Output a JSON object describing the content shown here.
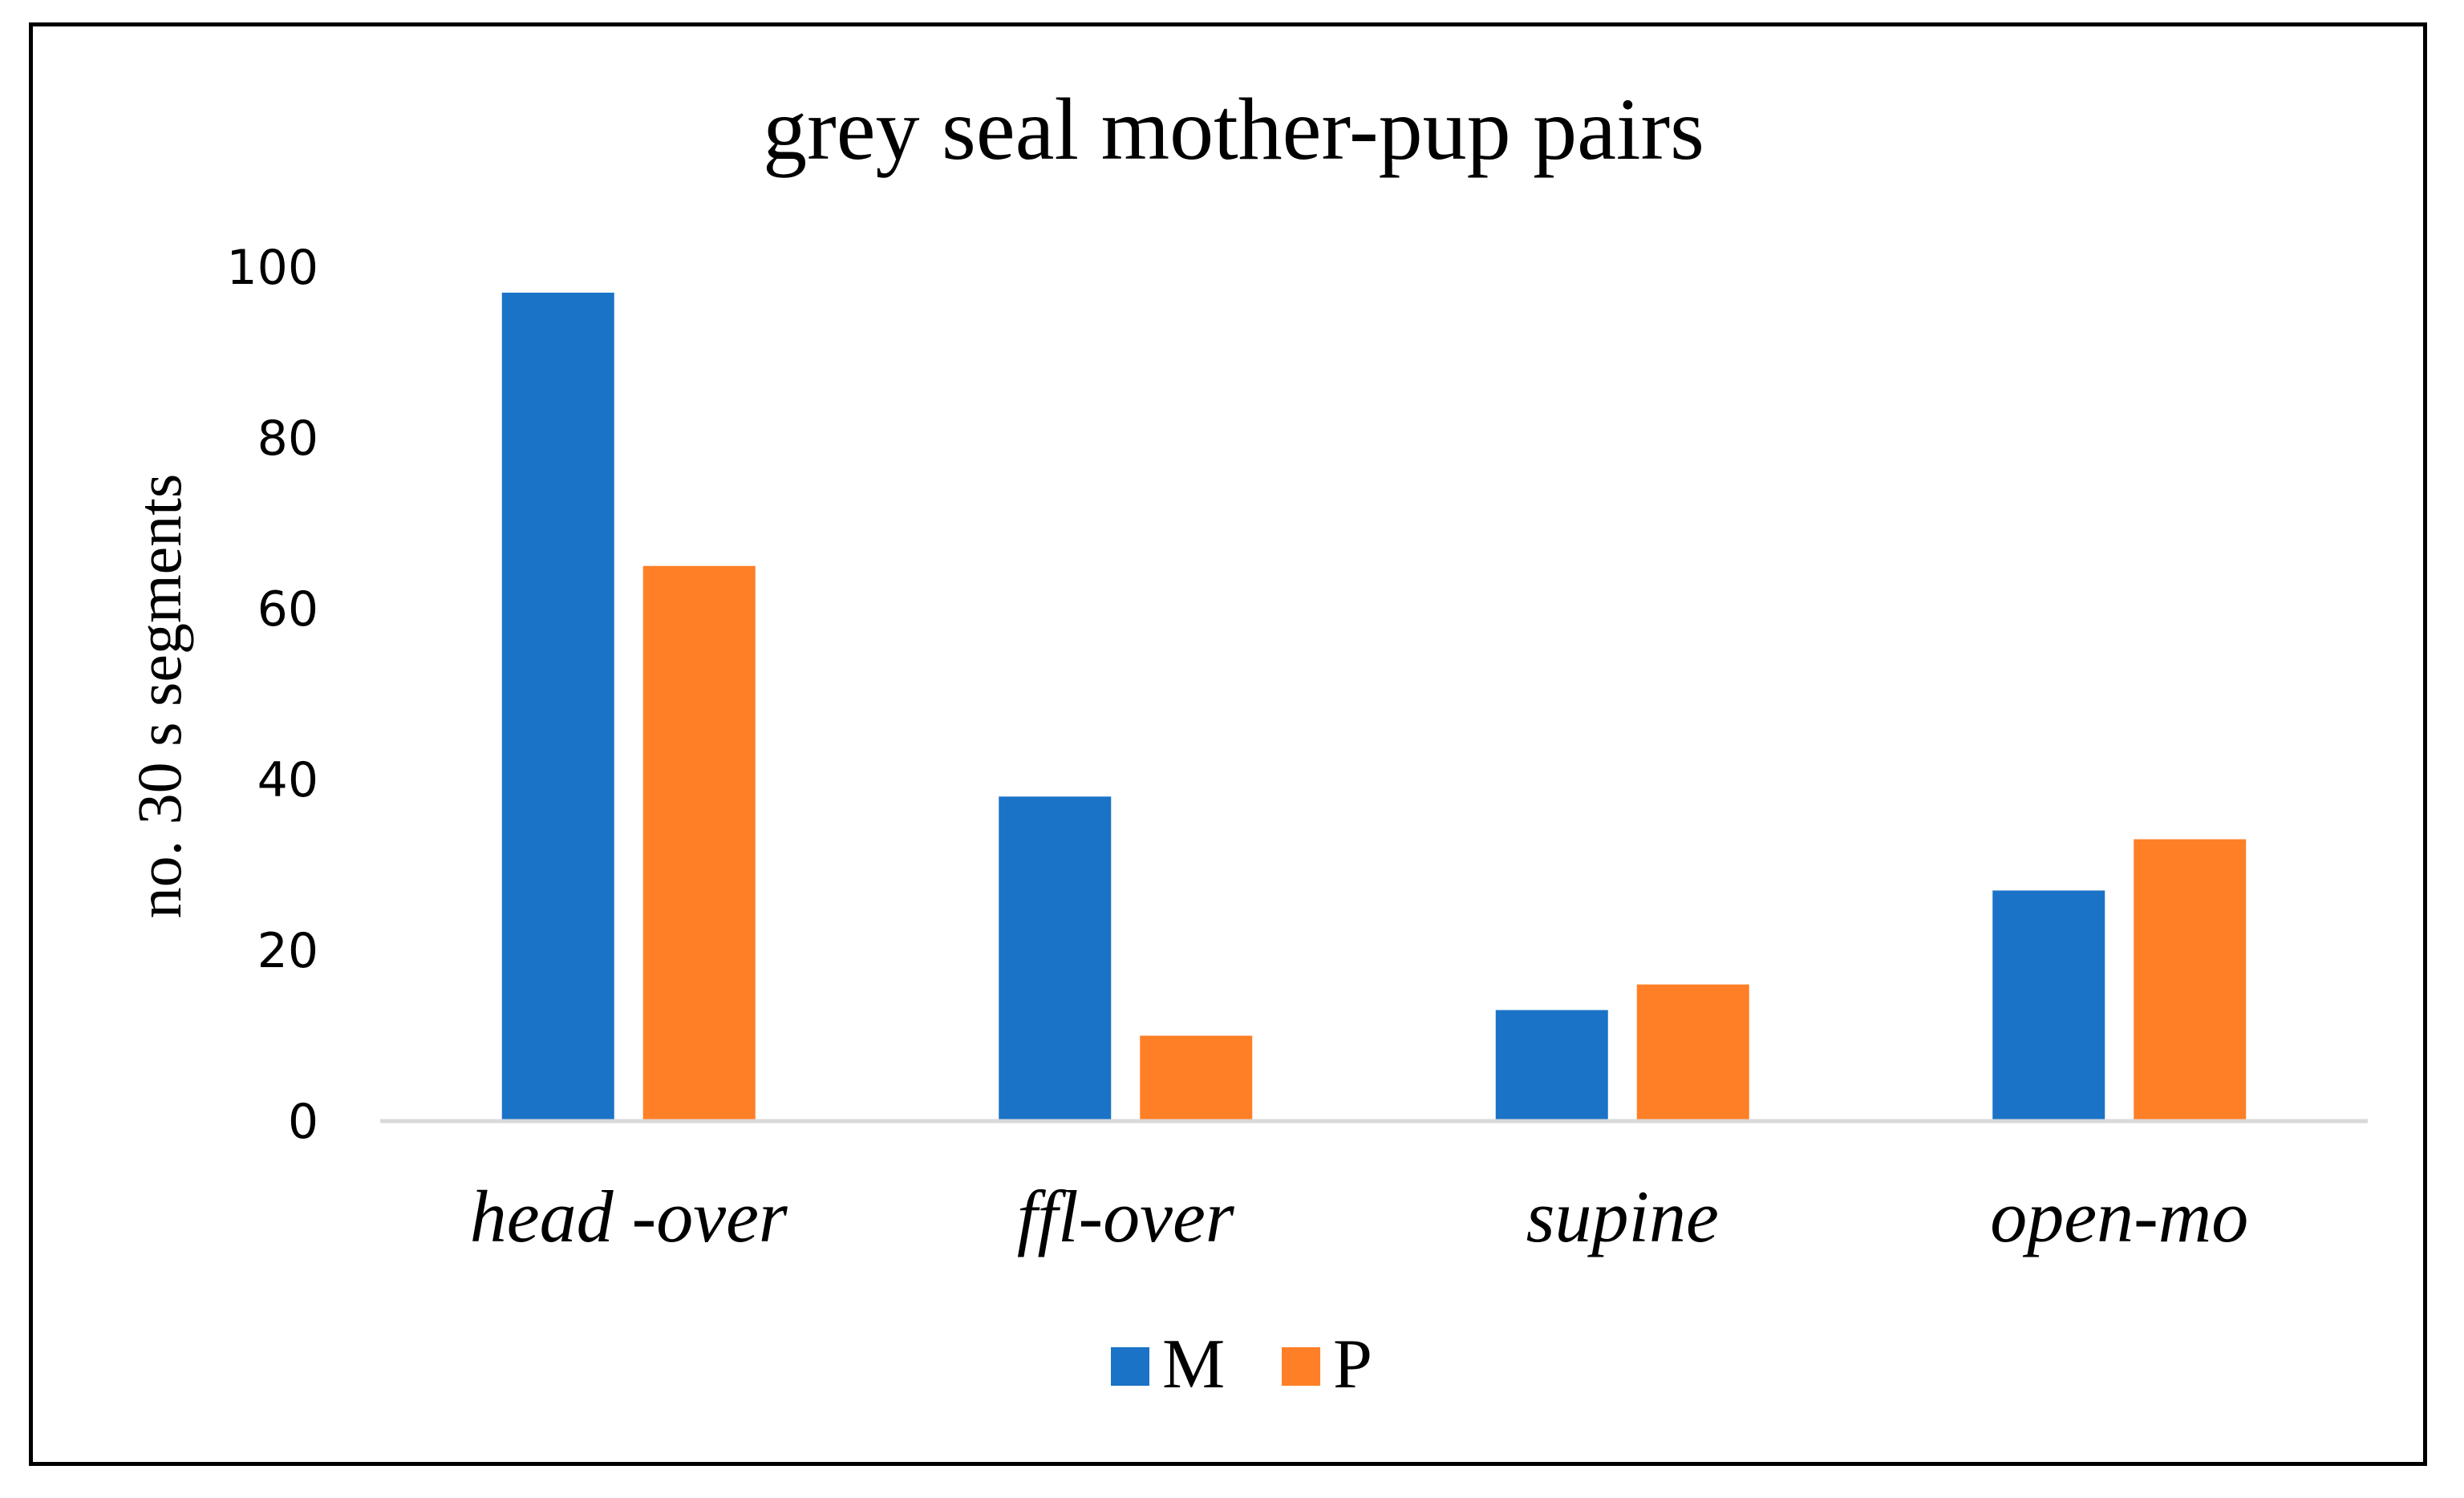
{
  "chart_data": {
    "type": "bar",
    "title": "grey seal mother-pup pairs",
    "xlabel": "",
    "ylabel": "no. 30 s segments",
    "ylim": [
      0,
      100
    ],
    "yticks": [
      0,
      20,
      40,
      60,
      80,
      100
    ],
    "categories": [
      "head -over",
      "ffl-over",
      "supine",
      "open-mo"
    ],
    "series": [
      {
        "name": "M",
        "values": [
          97,
          38,
          13,
          27
        ],
        "color": "#1a73c7"
      },
      {
        "name": "P",
        "values": [
          65,
          10,
          16,
          33
        ],
        "color": "#ff7f27"
      }
    ],
    "grid": false,
    "legend": "bottom",
    "axis_color": "#d9d9d9"
  }
}
